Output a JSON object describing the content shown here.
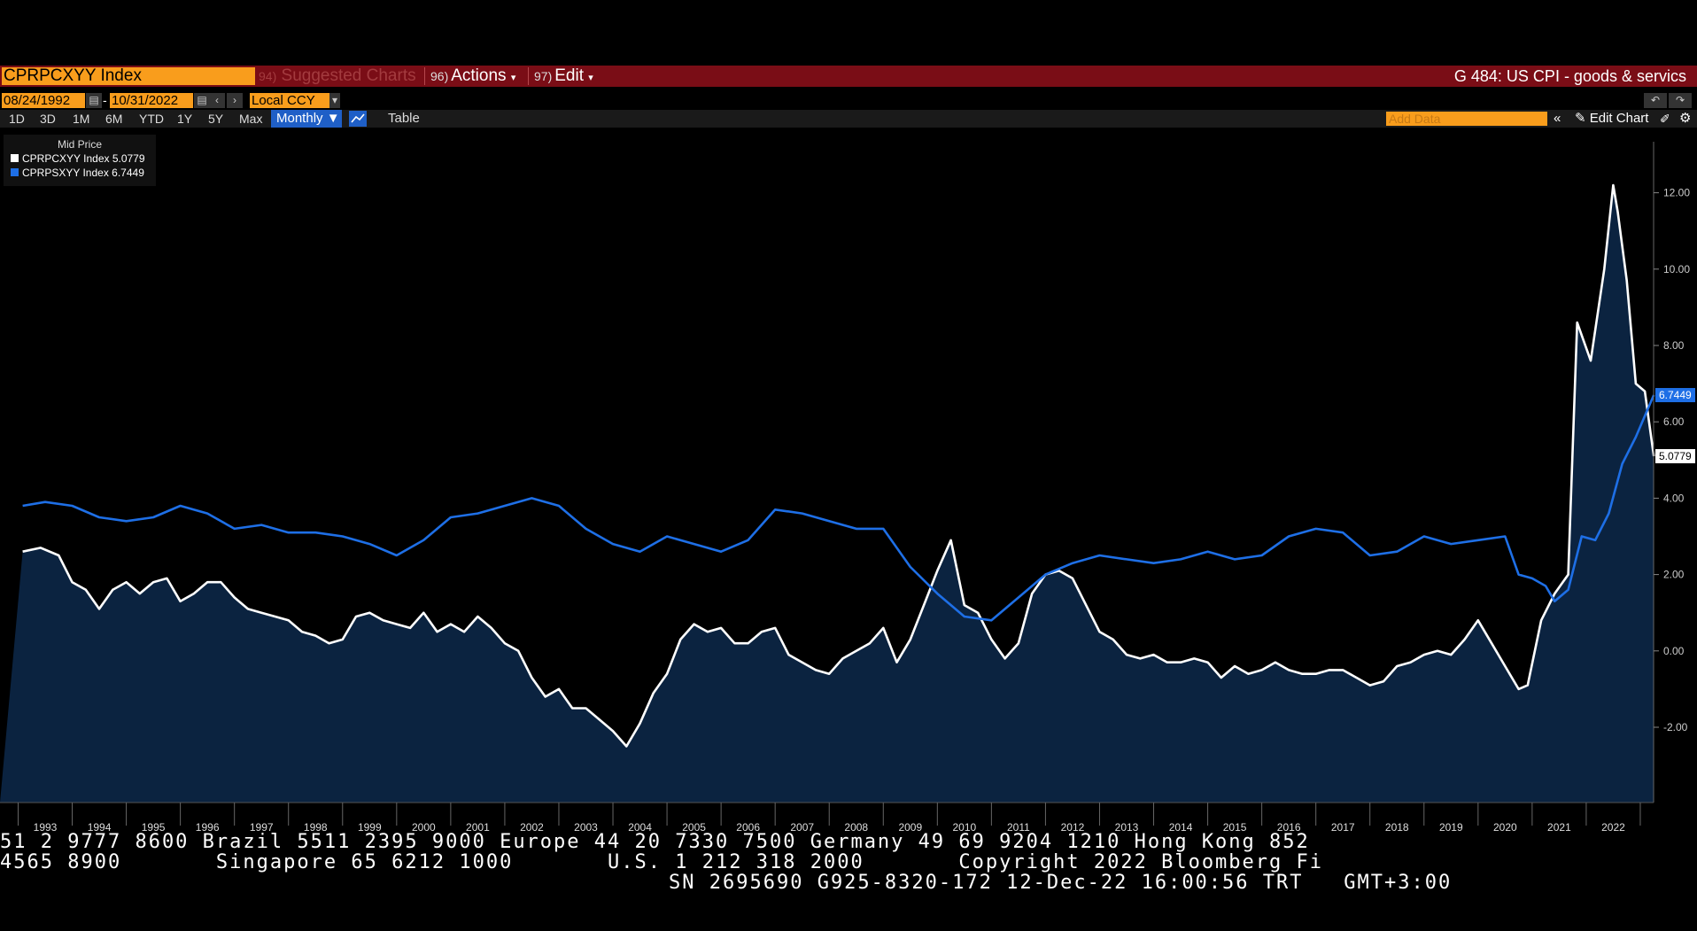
{
  "toolbar": {
    "ticker": "CPRPCXYY Index",
    "suggested_num": "94)",
    "suggested_label": "Suggested Charts",
    "actions_num": "96)",
    "actions_label": "Actions",
    "edit_num": "97)",
    "edit_label": "Edit",
    "chart_title": "G 484: US CPI - goods & servics"
  },
  "range": {
    "start_date": "08/24/1992",
    "end_date": "10/31/2022",
    "currency": "Local CCY"
  },
  "periods": [
    "1D",
    "3D",
    "1M",
    "6M",
    "YTD",
    "1Y",
    "5Y",
    "Max"
  ],
  "frequency": "Monthly",
  "table_label": "Table",
  "add_data_placeholder": "Add Data",
  "edit_chart_label": "Edit Chart",
  "legend": {
    "title": "Mid Price",
    "items": [
      {
        "label": "CPRPCXYY Index 5.0779",
        "color": "#ffffff"
      },
      {
        "label": "CPRPSXYY Index 6.7449",
        "color": "#1e6fe6"
      }
    ]
  },
  "chart_data": {
    "type": "line",
    "ylim": [
      -4,
      13
    ],
    "y_ticks": [
      -2,
      0,
      2,
      4,
      6,
      8,
      10,
      12
    ],
    "y_tick_labels": [
      "-2.00",
      "0.00",
      "2.00",
      "4.00",
      "6.00",
      "8.00",
      "10.00",
      "12.00"
    ],
    "x_tick_labels": [
      "1993",
      "1994",
      "1995",
      "1996",
      "1997",
      "1998",
      "1999",
      "2000",
      "2001",
      "2002",
      "2003",
      "2004",
      "2005",
      "2006",
      "2007",
      "2008",
      "2009",
      "2010",
      "2011",
      "2012",
      "2013",
      "2014",
      "2015",
      "2016",
      "2017",
      "2018",
      "2019",
      "2020",
      "2021",
      "2022"
    ],
    "last_value_labels": [
      "6.7449",
      "5.0779"
    ],
    "series": [
      {
        "name": "CPRPCXYY Index",
        "color": "#ffffff",
        "fill": "#0b2340",
        "points": [
          [
            "1992-08",
            2.6
          ],
          [
            "1992-12",
            2.7
          ],
          [
            "1993-04",
            2.5
          ],
          [
            "1993-07",
            1.8
          ],
          [
            "1993-10",
            1.6
          ],
          [
            "1994-01",
            1.1
          ],
          [
            "1994-04",
            1.6
          ],
          [
            "1994-07",
            1.8
          ],
          [
            "1994-10",
            1.5
          ],
          [
            "1995-01",
            1.8
          ],
          [
            "1995-04",
            1.9
          ],
          [
            "1995-07",
            1.3
          ],
          [
            "1995-10",
            1.5
          ],
          [
            "1996-01",
            1.8
          ],
          [
            "1996-04",
            1.8
          ],
          [
            "1996-07",
            1.4
          ],
          [
            "1996-10",
            1.1
          ],
          [
            "1997-01",
            1.0
          ],
          [
            "1997-04",
            0.9
          ],
          [
            "1997-07",
            0.8
          ],
          [
            "1997-10",
            0.5
          ],
          [
            "1998-01",
            0.4
          ],
          [
            "1998-04",
            0.2
          ],
          [
            "1998-07",
            0.3
          ],
          [
            "1998-10",
            0.9
          ],
          [
            "1999-01",
            1.0
          ],
          [
            "1999-04",
            0.8
          ],
          [
            "1999-07",
            0.7
          ],
          [
            "1999-10",
            0.6
          ],
          [
            "2000-01",
            1.0
          ],
          [
            "2000-04",
            0.5
          ],
          [
            "2000-07",
            0.7
          ],
          [
            "2000-10",
            0.5
          ],
          [
            "2001-01",
            0.9
          ],
          [
            "2001-04",
            0.6
          ],
          [
            "2001-07",
            0.2
          ],
          [
            "2001-10",
            0.0
          ],
          [
            "2002-01",
            -0.7
          ],
          [
            "2002-04",
            -1.2
          ],
          [
            "2002-07",
            -1.0
          ],
          [
            "2002-10",
            -1.5
          ],
          [
            "2003-01",
            -1.5
          ],
          [
            "2003-04",
            -1.8
          ],
          [
            "2003-07",
            -2.1
          ],
          [
            "2003-10",
            -2.5
          ],
          [
            "2004-01",
            -1.9
          ],
          [
            "2004-04",
            -1.1
          ],
          [
            "2004-07",
            -0.6
          ],
          [
            "2004-10",
            0.3
          ],
          [
            "2005-01",
            0.7
          ],
          [
            "2005-04",
            0.5
          ],
          [
            "2005-07",
            0.6
          ],
          [
            "2005-10",
            0.2
          ],
          [
            "2006-01",
            0.2
          ],
          [
            "2006-04",
            0.5
          ],
          [
            "2006-07",
            0.6
          ],
          [
            "2006-10",
            -0.1
          ],
          [
            "2007-01",
            -0.3
          ],
          [
            "2007-04",
            -0.5
          ],
          [
            "2007-07",
            -0.6
          ],
          [
            "2007-10",
            -0.2
          ],
          [
            "2008-01",
            0.0
          ],
          [
            "2008-04",
            0.2
          ],
          [
            "2008-07",
            0.6
          ],
          [
            "2008-10",
            -0.3
          ],
          [
            "2009-01",
            0.3
          ],
          [
            "2009-04",
            1.2
          ],
          [
            "2009-07",
            2.1
          ],
          [
            "2009-10",
            2.9
          ],
          [
            "2010-01",
            1.2
          ],
          [
            "2010-04",
            1.0
          ],
          [
            "2010-07",
            0.3
          ],
          [
            "2010-10",
            -0.2
          ],
          [
            "2011-01",
            0.2
          ],
          [
            "2011-04",
            1.5
          ],
          [
            "2011-07",
            2.0
          ],
          [
            "2011-10",
            2.1
          ],
          [
            "2012-01",
            1.9
          ],
          [
            "2012-04",
            1.2
          ],
          [
            "2012-07",
            0.5
          ],
          [
            "2012-10",
            0.3
          ],
          [
            "2013-01",
            -0.1
          ],
          [
            "2013-04",
            -0.2
          ],
          [
            "2013-07",
            -0.1
          ],
          [
            "2013-10",
            -0.3
          ],
          [
            "2014-01",
            -0.3
          ],
          [
            "2014-04",
            -0.2
          ],
          [
            "2014-07",
            -0.3
          ],
          [
            "2014-10",
            -0.7
          ],
          [
            "2015-01",
            -0.4
          ],
          [
            "2015-04",
            -0.6
          ],
          [
            "2015-07",
            -0.5
          ],
          [
            "2015-10",
            -0.3
          ],
          [
            "2016-01",
            -0.5
          ],
          [
            "2016-04",
            -0.6
          ],
          [
            "2016-07",
            -0.6
          ],
          [
            "2016-10",
            -0.5
          ],
          [
            "2017-01",
            -0.5
          ],
          [
            "2017-04",
            -0.7
          ],
          [
            "2017-07",
            -0.9
          ],
          [
            "2017-10",
            -0.8
          ],
          [
            "2018-01",
            -0.4
          ],
          [
            "2018-04",
            -0.3
          ],
          [
            "2018-07",
            -0.1
          ],
          [
            "2018-10",
            0.0
          ],
          [
            "2019-01",
            -0.1
          ],
          [
            "2019-04",
            0.3
          ],
          [
            "2019-07",
            0.8
          ],
          [
            "2019-10",
            0.2
          ],
          [
            "2020-01",
            -0.4
          ],
          [
            "2020-04",
            -1.0
          ],
          [
            "2020-06",
            -0.9
          ],
          [
            "2020-09",
            0.8
          ],
          [
            "2020-12",
            1.5
          ],
          [
            "2021-03",
            2.0
          ],
          [
            "2021-05",
            8.6
          ],
          [
            "2021-08",
            7.6
          ],
          [
            "2021-11",
            10.0
          ],
          [
            "2022-01",
            12.2
          ],
          [
            "2022-02",
            11.5
          ],
          [
            "2022-04",
            9.7
          ],
          [
            "2022-06",
            7.0
          ],
          [
            "2022-08",
            6.8
          ],
          [
            "2022-10",
            5.1
          ]
        ]
      },
      {
        "name": "CPRPSXYY Index",
        "color": "#1e6fe6",
        "points": [
          [
            "1992-08",
            3.8
          ],
          [
            "1993-01",
            3.9
          ],
          [
            "1993-07",
            3.8
          ],
          [
            "1994-01",
            3.5
          ],
          [
            "1994-07",
            3.4
          ],
          [
            "1995-01",
            3.5
          ],
          [
            "1995-07",
            3.8
          ],
          [
            "1996-01",
            3.6
          ],
          [
            "1996-07",
            3.2
          ],
          [
            "1997-01",
            3.3
          ],
          [
            "1997-07",
            3.1
          ],
          [
            "1998-01",
            3.1
          ],
          [
            "1998-07",
            3.0
          ],
          [
            "1999-01",
            2.8
          ],
          [
            "1999-07",
            2.5
          ],
          [
            "2000-01",
            2.9
          ],
          [
            "2000-07",
            3.5
          ],
          [
            "2001-01",
            3.6
          ],
          [
            "2001-07",
            3.8
          ],
          [
            "2002-01",
            4.0
          ],
          [
            "2002-07",
            3.8
          ],
          [
            "2003-01",
            3.2
          ],
          [
            "2003-07",
            2.8
          ],
          [
            "2004-01",
            2.6
          ],
          [
            "2004-07",
            3.0
          ],
          [
            "2005-01",
            2.8
          ],
          [
            "2005-07",
            2.6
          ],
          [
            "2006-01",
            2.9
          ],
          [
            "2006-07",
            3.7
          ],
          [
            "2007-01",
            3.6
          ],
          [
            "2007-07",
            3.4
          ],
          [
            "2008-01",
            3.2
          ],
          [
            "2008-07",
            3.2
          ],
          [
            "2009-01",
            2.2
          ],
          [
            "2009-07",
            1.5
          ],
          [
            "2010-01",
            0.9
          ],
          [
            "2010-07",
            0.8
          ],
          [
            "2011-01",
            1.4
          ],
          [
            "2011-07",
            2.0
          ],
          [
            "2012-01",
            2.3
          ],
          [
            "2012-07",
            2.5
          ],
          [
            "2013-01",
            2.4
          ],
          [
            "2013-07",
            2.3
          ],
          [
            "2014-01",
            2.4
          ],
          [
            "2014-07",
            2.6
          ],
          [
            "2015-01",
            2.4
          ],
          [
            "2015-07",
            2.5
          ],
          [
            "2016-01",
            3.0
          ],
          [
            "2016-07",
            3.2
          ],
          [
            "2017-01",
            3.1
          ],
          [
            "2017-07",
            2.5
          ],
          [
            "2018-01",
            2.6
          ],
          [
            "2018-07",
            3.0
          ],
          [
            "2019-01",
            2.8
          ],
          [
            "2019-07",
            2.9
          ],
          [
            "2020-01",
            3.0
          ],
          [
            "2020-04",
            2.0
          ],
          [
            "2020-07",
            1.9
          ],
          [
            "2020-10",
            1.7
          ],
          [
            "2020-12",
            1.3
          ],
          [
            "2021-03",
            1.6
          ],
          [
            "2021-06",
            3.0
          ],
          [
            "2021-09",
            2.9
          ],
          [
            "2021-12",
            3.6
          ],
          [
            "2022-03",
            4.9
          ],
          [
            "2022-06",
            5.6
          ],
          [
            "2022-10",
            6.7
          ]
        ]
      }
    ]
  },
  "footer": {
    "line1": "51 2 9777 8600 Brazil 5511 2395 9000 Europe 44 20 7330 7500 Germany 49 69 9204 1210 Hong Kong 852",
    "line2": "4565 8900       Singapore 65 6212 1000       U.S. 1 212 318 2000       Copyright 2022 Bloomberg Fi",
    "line3": "SN 2695690 G925-8320-172 12-Dec-22 16:00:56 TRT   GMT+3:00"
  }
}
